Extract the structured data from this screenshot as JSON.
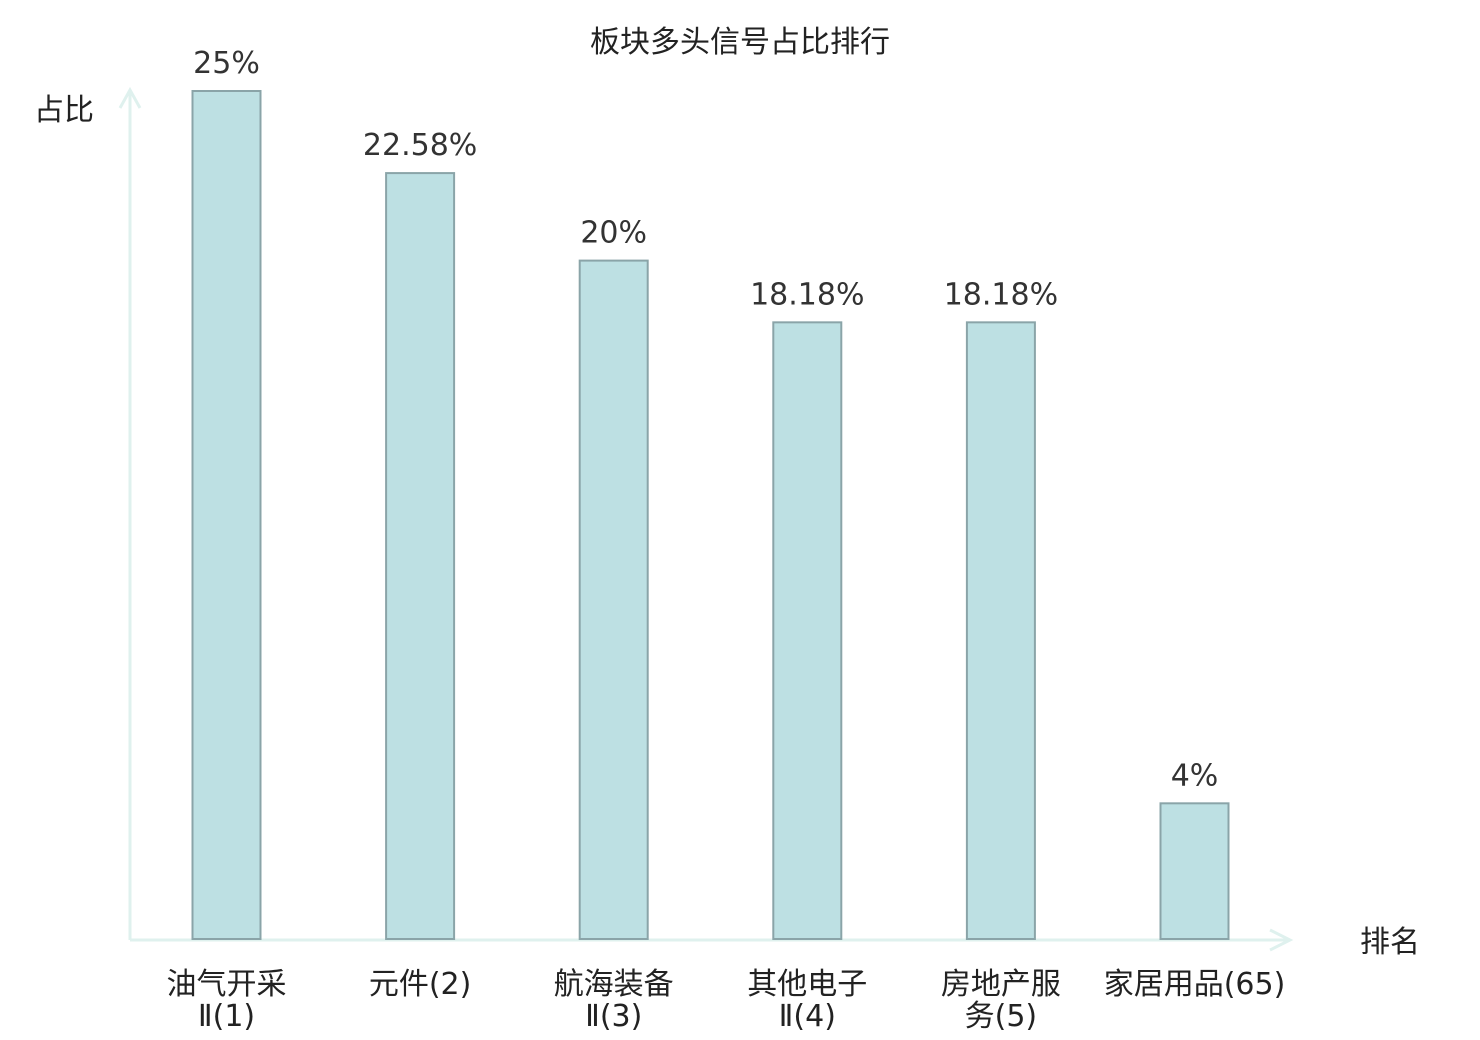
{
  "chart_data": {
    "type": "bar",
    "title": "板块多头信号占比排行",
    "ylabel": "占比",
    "xlabel": "排名",
    "ylim": [
      0,
      25
    ],
    "grid": false,
    "legend": "none",
    "categories": [
      [
        "油气开采",
        "Ⅱ(1)"
      ],
      [
        "元件(2)"
      ],
      [
        "航海装备",
        "Ⅱ(3)"
      ],
      [
        "其他电子",
        "Ⅱ(4)"
      ],
      [
        "房地产服",
        "务(5)"
      ],
      [
        "家居用品(65)"
      ]
    ],
    "values": [
      25,
      22.58,
      20,
      18.18,
      18.18,
      4
    ],
    "value_labels": [
      "25%",
      "22.58%",
      "20%",
      "18.18%",
      "18.18%",
      "4%"
    ],
    "highlight_index": 5
  },
  "colors": {
    "bar_fill": "#bde0e3",
    "bar_stroke": "#8aa4a8",
    "axis": "#dff1ee",
    "text": "#222222",
    "highlight": "#e02020"
  }
}
